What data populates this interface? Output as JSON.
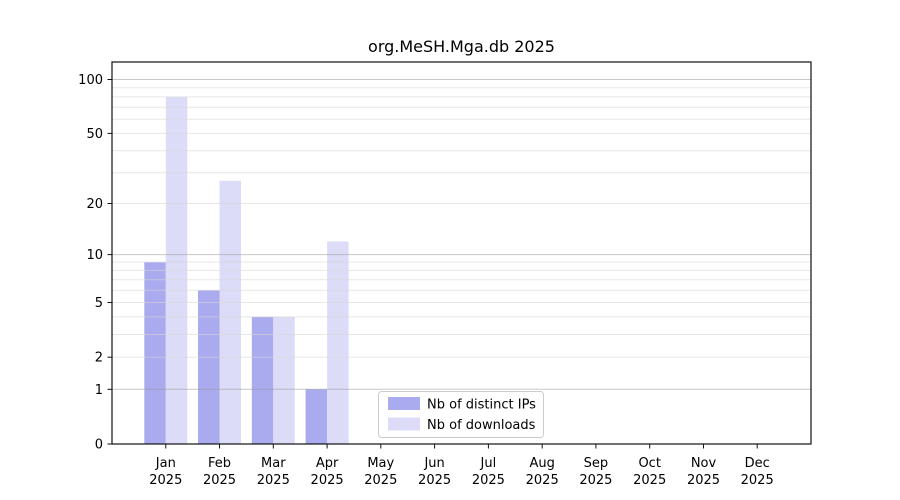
{
  "window": {
    "background": "#ffffff"
  },
  "chart_data": {
    "type": "bar",
    "title": "org.MeSH.Mga.db 2025",
    "categories": [
      "Jan",
      "Feb",
      "Mar",
      "Apr",
      "May",
      "Jun",
      "Jul",
      "Aug",
      "Sep",
      "Oct",
      "Nov",
      "Dec"
    ],
    "category_year": "2025",
    "series": [
      {
        "name": "Nb of distinct IPs",
        "color": "#aaaaee",
        "values": [
          9,
          6,
          4,
          1,
          0,
          0,
          0,
          0,
          0,
          0,
          0,
          0
        ]
      },
      {
        "name": "Nb of downloads",
        "color": "#dcdcf8",
        "values": [
          80,
          27,
          4,
          12,
          0,
          0,
          0,
          0,
          0,
          0,
          0,
          0
        ]
      }
    ],
    "xlabel": "",
    "ylabel": "",
    "yscale": "log1p",
    "ylim": [
      0,
      125
    ],
    "yticks": [
      0,
      1,
      2,
      5,
      10,
      20,
      50,
      100
    ],
    "major_gridlines": [
      1,
      10,
      100
    ],
    "minor_gridlines": [
      2,
      3,
      4,
      5,
      6,
      7,
      8,
      9,
      20,
      30,
      40,
      50,
      60,
      70,
      80,
      90
    ],
    "grid": "on",
    "legend_position": "lower center",
    "bar_group": "paired side-by-side per month"
  }
}
